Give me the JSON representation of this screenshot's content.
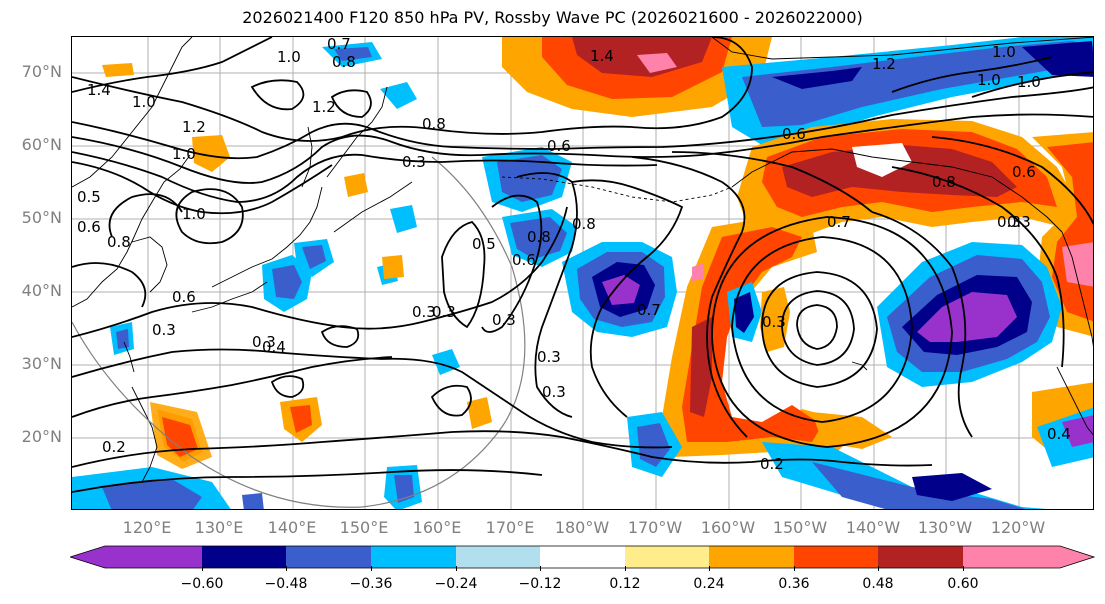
{
  "title": "2026021400 F120 850 hPa PV, Rossby Wave PC (2026021600 - 2026022000)",
  "lat_labels": [
    "70°N",
    "60°N",
    "50°N",
    "40°N",
    "30°N",
    "20°N"
  ],
  "lon_labels": [
    "120°E",
    "130°E",
    "140°E",
    "150°E",
    "160°E",
    "170°E",
    "180°W",
    "170°W",
    "160°W",
    "150°W",
    "140°W",
    "130°W",
    "120°W"
  ],
  "contour_labels": [
    "1.4",
    "1.0",
    "0.7",
    "0.8",
    "1.0",
    "1.2",
    "1.4",
    "1.0",
    "1.2",
    "1.0",
    "0.8",
    "0.6",
    "0.5",
    "0.6",
    "1.0",
    "0.8",
    "0.6",
    "0.3",
    "0.3",
    "0.5",
    "0.8",
    "0.8",
    "0.6",
    "0.7",
    "0.6",
    "0.3",
    "0.3",
    "0.4",
    "0.3",
    "0.3",
    "0.3",
    "0.3",
    "0.2",
    "0.2",
    "0.4",
    "1.2",
    "1.0",
    "1.0",
    "0.6",
    "0.7",
    "0.3",
    "0.3",
    "0.8",
    "0.3"
  ],
  "colorbar": {
    "ticks": [
      "−0.60",
      "−0.48",
      "−0.36",
      "−0.24",
      "−0.12",
      "0.12",
      "0.24",
      "0.36",
      "0.48",
      "0.60"
    ],
    "colors": [
      "#9932cc",
      "#00008b",
      "#3a5fcd",
      "#00bfff",
      "#b2dfee",
      "#ffffff",
      "#ffec8b",
      "#ffa500",
      "#ff4500",
      "#b22222",
      "#ff82ab"
    ]
  }
}
